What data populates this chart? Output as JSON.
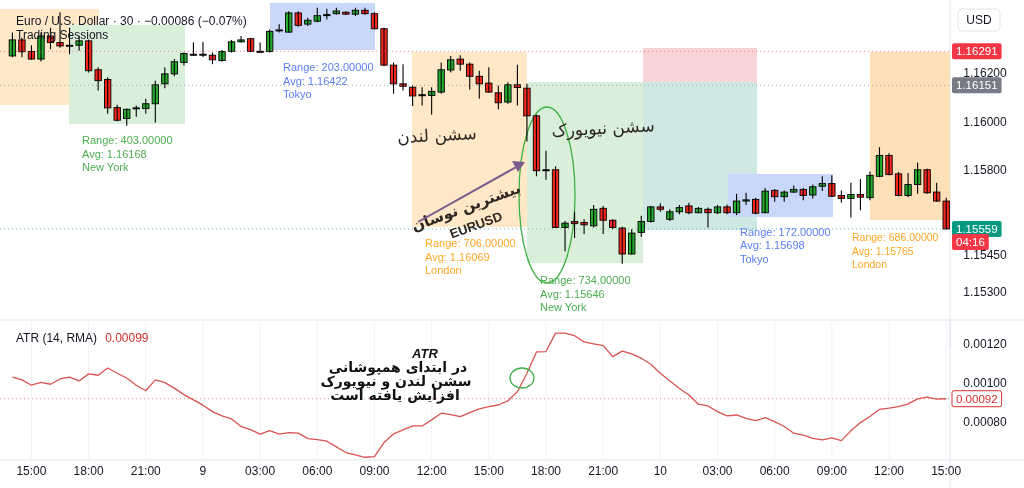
{
  "chart_data": [
    {
      "type": "candlestick",
      "title": "Euro / U.S. Dollar · 30 · −0.00086 (−0.07%)",
      "subtitle": "Trading Sessions",
      "ylabel": "USD",
      "categories": [
        null,
        null,
        null,
        null,
        null,
        null,
        null,
        null,
        null,
        null,
        null,
        null,
        null,
        null,
        null,
        null,
        null,
        null,
        null,
        null,
        null,
        null,
        null,
        null,
        null,
        null,
        null,
        null,
        null,
        null,
        null,
        null,
        null,
        null,
        null,
        null,
        null,
        null,
        null,
        null,
        null,
        null,
        null,
        null,
        null,
        null,
        null,
        null,
        null,
        null,
        null,
        null,
        null,
        null,
        null,
        null,
        null,
        null,
        null,
        null,
        null,
        null,
        null,
        null,
        null,
        null,
        null,
        null,
        null,
        null,
        null,
        null,
        null,
        null,
        null,
        null,
        null,
        null,
        null,
        null,
        null,
        null,
        null,
        null,
        null,
        null,
        null,
        null,
        null,
        null,
        null,
        null,
        null,
        null,
        null,
        null,
        null,
        null,
        null
      ],
      "ohlc": [
        [
          1.16272,
          1.16368,
          1.16266,
          1.16338
        ],
        [
          1.16338,
          1.16347,
          1.16266,
          1.16289
        ],
        [
          1.1629,
          1.16316,
          1.16256,
          1.16259
        ],
        [
          1.16259,
          1.16368,
          1.16249,
          1.16354
        ],
        [
          1.16354,
          1.16388,
          1.163,
          1.16327
        ],
        [
          1.16327,
          1.16452,
          1.16306,
          1.16313
        ],
        [
          1.16316,
          1.16388,
          1.16279,
          1.16316
        ],
        [
          1.16316,
          1.16354,
          1.16293,
          1.16334
        ],
        [
          1.16334,
          1.1634,
          1.16204,
          1.16211
        ],
        [
          1.16215,
          1.16225,
          1.1613,
          1.1617
        ],
        [
          1.16175,
          1.16184,
          1.16034,
          1.16058
        ],
        [
          1.16059,
          1.16071,
          1.16003,
          1.16007
        ],
        [
          1.16014,
          1.16055,
          1.15984,
          1.16052
        ],
        [
          1.16058,
          1.16068,
          1.16021,
          1.16058
        ],
        [
          1.16055,
          1.16096,
          1.16034,
          1.16075
        ],
        [
          1.16075,
          1.1617,
          1.15998,
          1.16153
        ],
        [
          1.16157,
          1.16225,
          1.16139,
          1.16198
        ],
        [
          1.16198,
          1.16259,
          1.16188,
          1.16248
        ],
        [
          1.16245,
          1.16286,
          1.16232,
          1.16282
        ],
        [
          1.16279,
          1.16327,
          1.16272,
          1.16279
        ],
        [
          1.16279,
          1.1633,
          1.16268,
          1.16279
        ],
        [
          1.16275,
          1.16286,
          1.16238,
          1.16256
        ],
        [
          1.16253,
          1.16296,
          1.16248,
          1.1629
        ],
        [
          1.16291,
          1.16338,
          1.16286,
          1.1633
        ],
        [
          1.1633,
          1.16354,
          1.16327,
          1.16338
        ],
        [
          1.16343,
          1.16347,
          1.16289,
          1.16291
        ],
        [
          1.16291,
          1.16327,
          1.16286,
          1.16291
        ],
        [
          1.1629,
          1.16381,
          1.16286,
          1.16373
        ],
        [
          1.16379,
          1.16402,
          1.16368,
          1.16379
        ],
        [
          1.1637,
          1.16456,
          1.16368,
          1.16449
        ],
        [
          1.16449,
          1.16456,
          1.16392,
          1.16398
        ],
        [
          1.16403,
          1.16429,
          1.16395,
          1.16419
        ],
        [
          1.16415,
          1.1647,
          1.16411,
          1.16438
        ],
        [
          1.16442,
          1.16466,
          1.16422,
          1.16442
        ],
        [
          1.16446,
          1.1647,
          1.16442,
          1.16457
        ],
        [
          1.16452,
          1.16456,
          1.16441,
          1.16444
        ],
        [
          1.16444,
          1.1647,
          1.16436,
          1.1646
        ],
        [
          1.1646,
          1.1647,
          1.16442,
          1.16446
        ],
        [
          1.16446,
          1.16452,
          1.16381,
          1.16384
        ],
        [
          1.16384,
          1.16388,
          1.16229,
          1.16234
        ],
        [
          1.16234,
          1.16245,
          1.16116,
          1.16157
        ],
        [
          1.16157,
          1.16238,
          1.1613,
          1.16147
        ],
        [
          1.16143,
          1.1615,
          1.16066,
          1.16107
        ],
        [
          1.16112,
          1.16143,
          1.16068,
          1.16112
        ],
        [
          1.16109,
          1.16143,
          1.1603,
          1.16126
        ],
        [
          1.16123,
          1.16245,
          1.16116,
          1.16215
        ],
        [
          1.16214,
          1.16272,
          1.16204,
          1.16256
        ],
        [
          1.16259,
          1.16275,
          1.16211,
          1.16238
        ],
        [
          1.16238,
          1.16245,
          1.16134,
          1.16188
        ],
        [
          1.16188,
          1.16211,
          1.16096,
          1.16157
        ],
        [
          1.1616,
          1.16225,
          1.1612,
          1.16123
        ],
        [
          1.1612,
          1.1615,
          1.16052,
          1.16079
        ],
        [
          1.16082,
          1.16164,
          1.16075,
          1.16153
        ],
        [
          1.16153,
          1.16236,
          1.16068,
          1.16142
        ],
        [
          1.16139,
          1.16157,
          1.15919,
          1.16025
        ],
        [
          1.16025,
          1.1603,
          1.15776,
          1.15799
        ],
        [
          1.15803,
          1.15881,
          1.15762,
          1.15803
        ],
        [
          1.15803,
          1.15817,
          1.15565,
          1.15565
        ],
        [
          1.15565,
          1.15592,
          1.15467,
          1.15583
        ],
        [
          1.1559,
          1.1563,
          1.15522,
          1.15581
        ],
        [
          1.15586,
          1.15599,
          1.15538,
          1.15576
        ],
        [
          1.15572,
          1.15658,
          1.15565,
          1.1564
        ],
        [
          1.15644,
          1.15654,
          1.15538,
          1.15595
        ],
        [
          1.15595,
          1.15599,
          1.15558,
          1.15565
        ],
        [
          1.15563,
          1.15568,
          1.15416,
          1.15456
        ],
        [
          1.15456,
          1.15558,
          1.15454,
          1.15542
        ],
        [
          1.15545,
          1.15613,
          1.15527,
          1.1559
        ],
        [
          1.1559,
          1.15654,
          1.15586,
          1.1565
        ],
        [
          1.1565,
          1.15665,
          1.1563,
          1.1564
        ],
        [
          1.15599,
          1.1564,
          1.15592,
          1.1563
        ],
        [
          1.1563,
          1.15658,
          1.1562,
          1.15647
        ],
        [
          1.15654,
          1.15667,
          1.1562,
          1.15626
        ],
        [
          1.15626,
          1.1565,
          1.15624,
          1.15644
        ],
        [
          1.1564,
          1.15647,
          1.15565,
          1.15626
        ],
        [
          1.15626,
          1.15658,
          1.1562,
          1.1565
        ],
        [
          1.1565,
          1.1566,
          1.1562,
          1.15626
        ],
        [
          1.15626,
          1.15704,
          1.15617,
          1.15674
        ],
        [
          1.15674,
          1.15708,
          1.15658,
          1.15679
        ],
        [
          1.15681,
          1.15688,
          1.1562,
          1.15624
        ],
        [
          1.15626,
          1.15728,
          1.15624,
          1.15715
        ],
        [
          1.15718,
          1.15724,
          1.15671,
          1.15692
        ],
        [
          1.15692,
          1.15718,
          1.15671,
          1.15711
        ],
        [
          1.15711,
          1.15738,
          1.15708,
          1.15722
        ],
        [
          1.15722,
          1.15728,
          1.15677,
          1.15697
        ],
        [
          1.15699,
          1.15742,
          1.15685,
          1.15733
        ],
        [
          1.15735,
          1.15776,
          1.15715,
          1.15746
        ],
        [
          1.15746,
          1.1578,
          1.15692,
          1.15694
        ],
        [
          1.15697,
          1.15718,
          1.15667,
          1.15685
        ],
        [
          1.15685,
          1.15749,
          1.15606,
          1.15701
        ],
        [
          1.15701,
          1.15765,
          1.15636,
          1.1569
        ],
        [
          1.15688,
          1.15796,
          1.15677,
          1.1578
        ],
        [
          1.15776,
          1.15896,
          1.15772,
          1.15862
        ],
        [
          1.15862,
          1.15871,
          1.1578,
          1.15783
        ],
        [
          1.15786,
          1.15794,
          1.15694,
          1.15697
        ],
        [
          1.15697,
          1.1579,
          1.1569,
          1.15742
        ],
        [
          1.15742,
          1.15833,
          1.15704,
          1.15803
        ],
        [
          1.15803,
          1.15807,
          1.15704,
          1.15708
        ],
        [
          1.15711,
          1.15749,
          1.15671,
          1.15674
        ],
        [
          1.15674,
          1.15688,
          1.15559,
          1.15559
        ]
      ],
      "colors": [
        "#22ab2d",
        "#f5261b",
        "#f5261b",
        "#22ab2d",
        "#f5261b",
        "#f5261b",
        "#000000",
        "#22ab2d",
        "#f5261b",
        "#f5261b",
        "#f5261b",
        "#f5261b",
        "#22ab2d",
        "#000000",
        "#22ab2d",
        "#22ab2d",
        "#22ab2d",
        "#22ab2d",
        "#22ab2d",
        "#000000",
        "#000000",
        "#f5261b",
        "#22ab2d",
        "#22ab2d",
        "#22ab2d",
        "#f5261b",
        "#000000",
        "#22ab2d",
        "#000000",
        "#22ab2d",
        "#f5261b",
        "#22ab2d",
        "#22ab2d",
        "#000000",
        "#22ab2d",
        "#f5261b",
        "#22ab2d",
        "#f5261b",
        "#f5261b",
        "#f5261b",
        "#f5261b",
        "#f5261b",
        "#f5261b",
        "#000000",
        "#22ab2d",
        "#22ab2d",
        "#22ab2d",
        "#f5261b",
        "#f5261b",
        "#f5261b",
        "#f5261b",
        "#f5261b",
        "#22ab2d",
        "#f5261b",
        "#f5261b",
        "#f5261b",
        "#000000",
        "#f5261b",
        "#22ab2d",
        "#f5261b",
        "#f5261b",
        "#22ab2d",
        "#f5261b",
        "#f5261b",
        "#f5261b",
        "#22ab2d",
        "#22ab2d",
        "#22ab2d",
        "#f5261b",
        "#22ab2d",
        "#22ab2d",
        "#f5261b",
        "#22ab2d",
        "#f5261b",
        "#22ab2d",
        "#f5261b",
        "#22ab2d",
        "#22ab2d",
        "#f5261b",
        "#22ab2d",
        "#f5261b",
        "#22ab2d",
        "#22ab2d",
        "#f5261b",
        "#22ab2d",
        "#22ab2d",
        "#f5261b",
        "#f5261b",
        "#22ab2d",
        "#f5261b",
        "#22ab2d",
        "#22ab2d",
        "#f5261b",
        "#f5261b",
        "#22ab2d",
        "#22ab2d",
        "#f5261b",
        "#f5261b",
        "#f5261b"
      ],
      "ylim": [
        1.15184,
        1.1649
      ],
      "yticks": [
        {
          "value": 1.153,
          "label": "1.15300"
        },
        {
          "value": 1.1545,
          "label": "1.15450"
        },
        {
          "value": 1.158,
          "label": "1.15800"
        },
        {
          "value": 1.16,
          "label": "1.16000"
        },
        {
          "value": 1.162,
          "label": "1.16200"
        }
      ],
      "tick_labels": "y",
      "ref_lines": [
        {
          "axis": "y",
          "value": 1.16291,
          "label": "1.16291",
          "color": "#f23645"
        },
        {
          "axis": "y",
          "value": 1.16151,
          "label": "1.16151",
          "color": "#787b86"
        },
        {
          "axis": "y",
          "value": 1.15559,
          "label": "1.15559",
          "color": "#089981"
        }
      ],
      "annotations": [
        "Range: 403.00000",
        "Avg: 1.16168",
        "New York",
        "Range: 203.00000",
        "Avg: 1.16422",
        "Tokyo",
        "Range: 706.00000",
        "Avg: 1.16069",
        "London",
        "Range: 734.00000",
        "Avg: 1.15646",
        "New York",
        "Range: 172.00000",
        "Avg: 1.15698",
        "Tokyo",
        "Range: 686.00000",
        "Avg: 1.15765",
        "London",
        "سشن لندن",
        "سشن نیویورک",
        "بیشترین نوسان",
        "EURUSD",
        "04:16"
      ]
    },
    {
      "type": "line",
      "title": "ATR (14, RMA)",
      "subtitle": "0.00099",
      "categories": [
        null,
        null,
        "15:00",
        null,
        null,
        null,
        null,
        null,
        "18:00",
        null,
        null,
        null,
        null,
        null,
        "21:00",
        null,
        null,
        null,
        null,
        null,
        "9",
        null,
        null,
        null,
        null,
        null,
        "03:00",
        null,
        null,
        null,
        null,
        null,
        "06:00",
        null,
        null,
        null,
        null,
        null,
        "09:00",
        null,
        null,
        null,
        null,
        null,
        "12:00",
        null,
        null,
        null,
        null,
        null,
        "15:00",
        null,
        null,
        null,
        null,
        null,
        "18:00",
        null,
        null,
        null,
        null,
        null,
        "21:00",
        null,
        null,
        null,
        null,
        null,
        "10",
        null,
        null,
        null,
        null,
        null,
        "03:00",
        null,
        null,
        null,
        null,
        null,
        "06:00",
        null,
        null,
        null,
        null,
        null,
        "09:00",
        null,
        null,
        null,
        null,
        null,
        "12:00",
        null,
        null,
        null,
        null,
        null,
        "15:00"
      ],
      "series": [
        {
          "color": "#d9534f",
          "values": [
            0.00103,
            0.001016,
            0.000989,
            0.001004,
            0.000994,
            0.001021,
            0.00103,
            0.001011,
            0.001047,
            0.00104,
            0.001077,
            0.00105,
            0.001026,
            0.000989,
            0.000961,
            0.001016,
            0.001002,
            0.000974,
            0.000941,
            0.000914,
            0.000887,
            0.000854,
            0.000832,
            0.000817,
            0.000778,
            0.000762,
            0.000739,
            0.000757,
            0.000739,
            0.000747,
            0.000744,
            0.000716,
            0.000711,
            0.000703,
            0.000674,
            0.000645,
            0.000633,
            0.000621,
            0.000624,
            0.000696,
            0.00074,
            0.000761,
            0.000781,
            0.000781,
            0.000812,
            0.000846,
            0.000839,
            0.000829,
            0.000849,
            0.000868,
            0.00088,
            0.000888,
            0.000909,
            0.000956,
            0.00105,
            0.001159,
            0.001161,
            0.001255,
            0.001255,
            0.001242,
            0.00121,
            0.0012,
            0.001191,
            0.001135,
            0.001163,
            0.001149,
            0.001127,
            0.001096,
            0.00105,
            0.001011,
            0.000972,
            0.000939,
            0.000892,
            0.000883,
            0.000854,
            0.000832,
            0.000837,
            0.00082,
            0.000808,
            0.000823,
            0.000803,
            0.000778,
            0.000744,
            0.000734,
            0.000718,
            0.00071,
            0.00072,
            0.000706,
            0.000756,
            0.000798,
            0.000829,
            0.000866,
            0.000872,
            0.00088,
            0.000894,
            0.000919,
            0.000928,
            0.000918,
            0.00092
          ]
        }
      ],
      "ylim": [
        0.000607,
        0.001312
      ],
      "grid": "x",
      "yticks": [
        {
          "value": 0.0008,
          "label": "0.00080"
        },
        {
          "value": 0.001,
          "label": "0.00100"
        },
        {
          "value": 0.0012,
          "label": "0.00120"
        }
      ],
      "ref_lines": [
        {
          "axis": "y",
          "value": 0.00092,
          "label": "0.00092",
          "color": "#d32f2f"
        }
      ],
      "annotations": [
        "ATR",
        "در ابتدای همپوشانی",
        "سشن لندن و نیویورک",
        "افزایش یافته است"
      ]
    }
  ]
}
